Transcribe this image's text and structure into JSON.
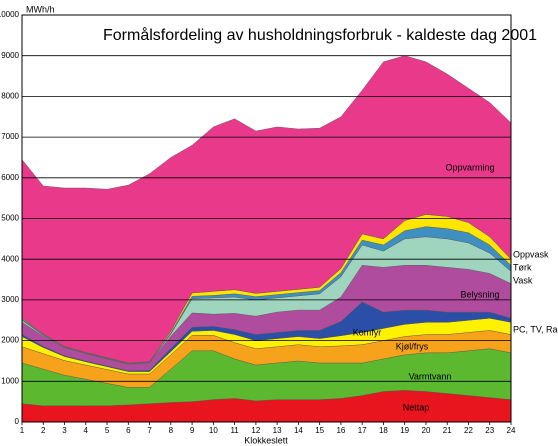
{
  "chart_data": {
    "type": "stacked_area",
    "title": "Formålsfordeling av husholdningsforbruk - kaldeste dag 2001",
    "y_label": "MWh/h",
    "x_label": "Klokkeslett",
    "x": [
      1,
      2,
      3,
      4,
      5,
      6,
      7,
      8,
      9,
      10,
      11,
      12,
      13,
      14,
      15,
      16,
      17,
      18,
      19,
      20,
      21,
      22,
      23,
      24
    ],
    "xlim": [
      1,
      24
    ],
    "xticks": [
      1,
      2,
      3,
      4,
      5,
      6,
      7,
      8,
      9,
      10,
      11,
      12,
      13,
      14,
      15,
      16,
      17,
      18,
      19,
      20,
      21,
      22,
      23,
      24
    ],
    "ylim": [
      0,
      10000
    ],
    "yticks": [
      0,
      1000,
      2000,
      3000,
      4000,
      5000,
      6000,
      7000,
      8000,
      9000,
      10000
    ],
    "grid": true,
    "series": [
      {
        "name": "Nettap",
        "color": "#e8141e",
        "values": [
          450,
          400,
          400,
          400,
          400,
          420,
          450,
          480,
          500,
          550,
          580,
          520,
          550,
          550,
          550,
          580,
          650,
          750,
          780,
          750,
          700,
          650,
          600,
          550
        ]
      },
      {
        "name": "Varmtvann",
        "color": "#5cb82e",
        "values": [
          1000,
          900,
          750,
          650,
          550,
          430,
          400,
          820,
          1250,
          1200,
          970,
          880,
          900,
          950,
          900,
          870,
          800,
          800,
          870,
          950,
          1000,
          1100,
          1200,
          1150
        ]
      },
      {
        "name": "Kjøl/frys",
        "color": "#f7a21b",
        "values": [
          400,
          380,
          360,
          350,
          340,
          330,
          330,
          350,
          380,
          380,
          400,
          400,
          400,
          400,
          400,
          420,
          450,
          450,
          450,
          450,
          450,
          450,
          450,
          450
        ]
      },
      {
        "name": "PC, TV, Radio",
        "color": "#fff200",
        "values": [
          250,
          150,
          100,
          80,
          70,
          60,
          60,
          80,
          100,
          120,
          200,
          200,
          200,
          200,
          200,
          250,
          300,
          300,
          300,
          300,
          300,
          300,
          300,
          300
        ]
      },
      {
        "name": "Komfyr",
        "color": "#2b4ea6",
        "values": [
          50,
          30,
          20,
          20,
          20,
          20,
          30,
          80,
          100,
          100,
          120,
          150,
          150,
          150,
          200,
          350,
          750,
          400,
          350,
          300,
          250,
          200,
          150,
          100
        ]
      },
      {
        "name": "Belysning",
        "color": "#b04c9e",
        "values": [
          300,
          250,
          200,
          180,
          170,
          160,
          180,
          300,
          350,
          300,
          400,
          450,
          500,
          500,
          500,
          600,
          900,
          1100,
          1100,
          1100,
          1100,
          1050,
          950,
          850
        ]
      },
      {
        "name": "Vask",
        "color": "#9fd4bf",
        "values": [
          50,
          20,
          10,
          10,
          10,
          10,
          10,
          50,
          350,
          400,
          400,
          400,
          350,
          350,
          400,
          500,
          500,
          400,
          650,
          700,
          700,
          650,
          500,
          300
        ]
      },
      {
        "name": "Tørk",
        "color": "#3f8fc0",
        "values": [
          30,
          20,
          10,
          10,
          10,
          10,
          10,
          30,
          60,
          60,
          80,
          80,
          80,
          80,
          80,
          100,
          120,
          150,
          200,
          250,
          250,
          250,
          200,
          150
        ]
      },
      {
        "name": "Oppvask",
        "color": "#ffe500",
        "values": [
          20,
          10,
          10,
          10,
          10,
          10,
          10,
          40,
          80,
          100,
          100,
          80,
          80,
          80,
          80,
          100,
          150,
          150,
          250,
          300,
          300,
          250,
          200,
          150
        ]
      },
      {
        "name": "Oppvarming",
        "color": "#e8398a",
        "values": [
          3900,
          3640,
          3890,
          4040,
          4140,
          4370,
          4620,
          4270,
          3630,
          4040,
          4200,
          3990,
          4040,
          3940,
          3910,
          3730,
          3530,
          4350,
          4050,
          3750,
          3500,
          3300,
          3300,
          3350
        ]
      }
    ]
  }
}
